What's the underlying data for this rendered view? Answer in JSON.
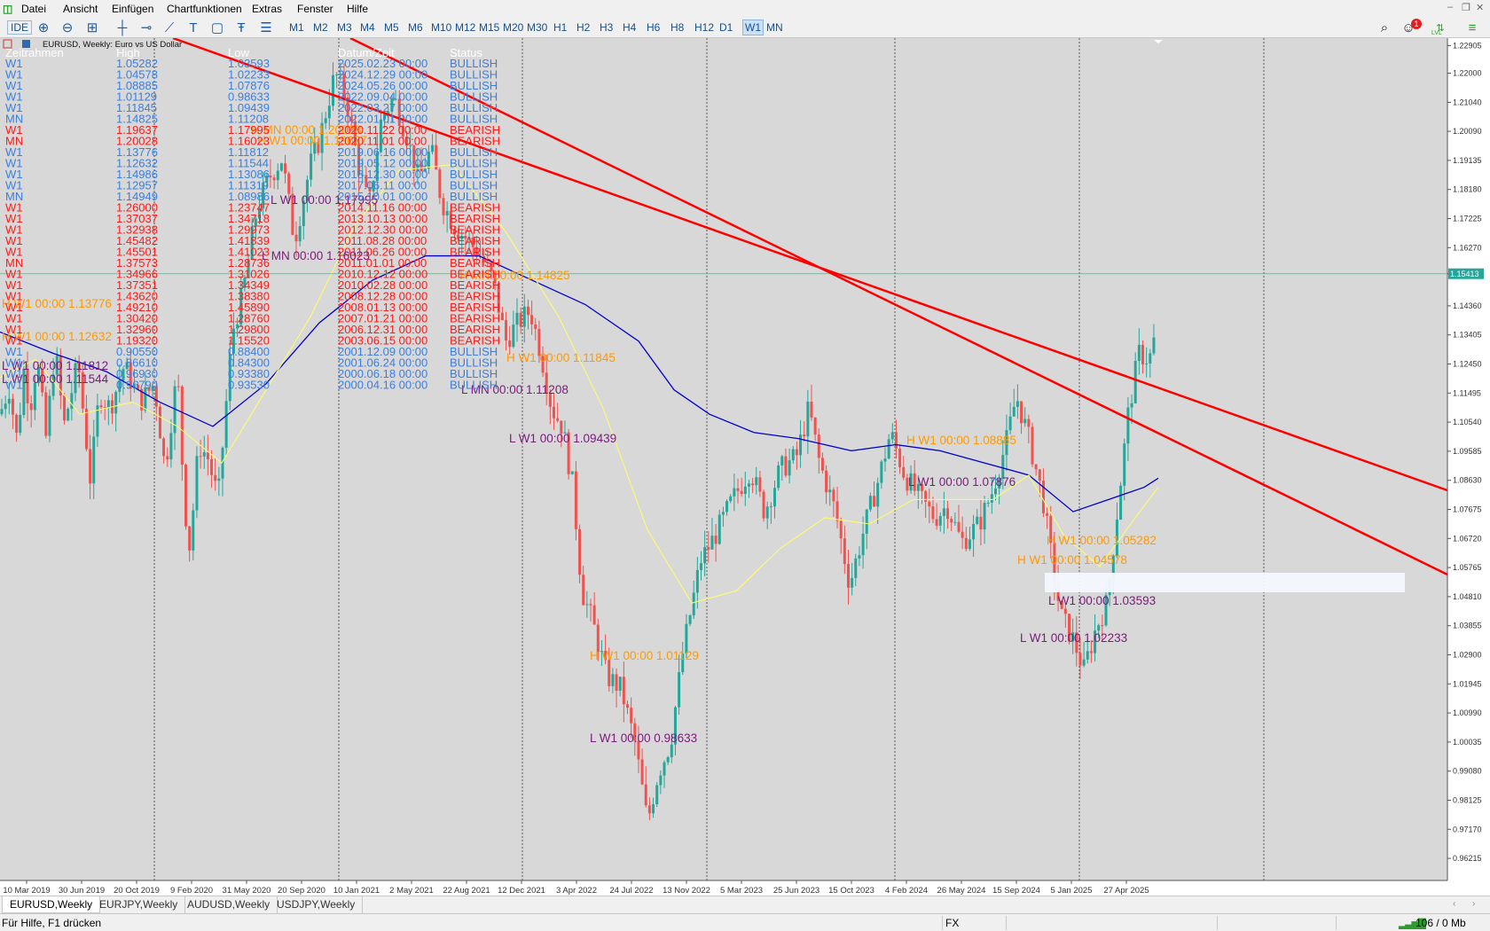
{
  "menu": [
    "Datei",
    "Ansicht",
    "Einfügen",
    "Chartfunktionen",
    "Extras",
    "Fenster",
    "Hilfe"
  ],
  "toolbar": {
    "ide_label": "IDE",
    "timeframes": [
      "M1",
      "M2",
      "M3",
      "M4",
      "M5",
      "M6",
      "M10",
      "M12",
      "M15",
      "M20",
      "M30",
      "H1",
      "H2",
      "H3",
      "H4",
      "H6",
      "H8",
      "H12",
      "D1",
      "W1",
      "MN"
    ],
    "active_timeframe": "W1",
    "notification_count": "1",
    "lvl_label": "LVL"
  },
  "chart": {
    "header": "EURUSD, Weekly:  Euro vs US Dollar",
    "current_price": "1.15413",
    "price_min": 0.9549,
    "price_max": 1.2315,
    "price_axis": [
      "1.22905",
      "1.22000",
      "1.21040",
      "1.20090",
      "1.19135",
      "1.18180",
      "1.17225",
      "1.16270",
      "1.15413",
      "1.14360",
      "1.13405",
      "1.12450",
      "1.11495",
      "1.10540",
      "1.09585",
      "1.08630",
      "1.07675",
      "1.06720",
      "1.05765",
      "1.04810",
      "1.03855",
      "1.02900",
      "1.01945",
      "1.00990",
      "1.00035",
      "0.99080",
      "0.98125",
      "0.97170",
      "0.96215"
    ],
    "date_axis": [
      "10 Mar 2019",
      "30 Jun 2019",
      "20 Oct 2019",
      "9 Feb 2020",
      "31 May 2020",
      "20 Sep 2020",
      "10 Jan 2021",
      "2 May 2021",
      "22 Aug 2021",
      "12 Dec 2021",
      "3 Apr 2022",
      "24 Jul 2022",
      "13 Nov 2022",
      "5 Mar 2023",
      "25 Jun 2023",
      "15 Oct 2023",
      "4 Feb 2024",
      "26 May 2024",
      "15 Sep 2024",
      "5 Jan 2025",
      "27 Apr 2025"
    ],
    "table_headers": [
      "Zeitrahmen",
      "High",
      "Low",
      "Datum/Zeit",
      "Status"
    ],
    "table_rows": [
      [
        "W1",
        "1.05282",
        "1.03593",
        "2025.02.23 00:00",
        "BULLISH"
      ],
      [
        "W1",
        "1.04578",
        "1.02233",
        "2024.12.29 00:00",
        "BULLISH"
      ],
      [
        "W1",
        "1.08885",
        "1.07876",
        "2024.05.26 00:00",
        "BULLISH"
      ],
      [
        "W1",
        "1.01129",
        "0.98633",
        "2022.09.04 00:00",
        "BULLISH"
      ],
      [
        "W1",
        "1.11845",
        "1.09439",
        "2022.03.27 00:00",
        "BULLISH"
      ],
      [
        "MN",
        "1.14825",
        "1.11208",
        "2022.01.01 00:00",
        "BULLISH"
      ],
      [
        "W1",
        "1.19637",
        "1.17995",
        "2020.11.22 00:00",
        "BEARISH"
      ],
      [
        "MN",
        "1.20028",
        "1.16023",
        "2020.11.01 00:00",
        "BEARISH"
      ],
      [
        "W1",
        "1.13776",
        "1.11812",
        "2019.06.16 00:00",
        "BULLISH"
      ],
      [
        "W1",
        "1.12632",
        "1.11544",
        "2019.05.12 00:00",
        "BULLISH"
      ],
      [
        "W1",
        "1.14986",
        "1.13086",
        "2018.12.30 00:00",
        "BULLISH"
      ],
      [
        "W1",
        "1.12957",
        "1.11319",
        "2017.06.11 00:00",
        "BULLISH"
      ],
      [
        "MN",
        "1.14949",
        "1.08986",
        "2015.10.01 00:00",
        "BULLISH"
      ],
      [
        "W1",
        "1.26000",
        "1.23747",
        "2014.11.16 00:00",
        "BEARISH"
      ],
      [
        "W1",
        "1.37037",
        "1.34718",
        "2013.10.13 00:00",
        "BEARISH"
      ],
      [
        "W1",
        "1.32938",
        "1.29973",
        "2012.12.30 00:00",
        "BEARISH"
      ],
      [
        "W1",
        "1.45482",
        "1.41839",
        "2011.08.28 00:00",
        "BEARISH"
      ],
      [
        "W1",
        "1.45501",
        "1.41023",
        "2011.06.26 00:00",
        "BEARISH"
      ],
      [
        "MN",
        "1.37573",
        "1.28736",
        "2011.01.01 00:00",
        "BEARISH"
      ],
      [
        "W1",
        "1.34966",
        "1.31026",
        "2010.12.12 00:00",
        "BEARISH"
      ],
      [
        "W1",
        "1.37351",
        "1.34349",
        "2010.02.28 00:00",
        "BEARISH"
      ],
      [
        "W1",
        "1.43620",
        "1.38380",
        "2008.12.28 00:00",
        "BEARISH"
      ],
      [
        "W1",
        "1.49210",
        "1.45890",
        "2008.01.13 00:00",
        "BEARISH"
      ],
      [
        "W1",
        "1.30420",
        "1.28760",
        "2007.01.21 00:00",
        "BEARISH"
      ],
      [
        "W1",
        "1.32960",
        "1.29800",
        "2006.12.31 00:00",
        "BEARISH"
      ],
      [
        "W1",
        "1.19320",
        "1.15520",
        "2003.06.15 00:00",
        "BEARISH"
      ],
      [
        "W1",
        "0.90550",
        "0.88400",
        "2001.12.09 00:00",
        "BULLISH"
      ],
      [
        "W1",
        "0.86610",
        "0.84300",
        "2001.06.24 00:00",
        "BULLISH"
      ],
      [
        "W1",
        "0.96930",
        "0.93380",
        "2000.06.18 00:00",
        "BULLISH"
      ],
      [
        "W1",
        "0.96790",
        "0.93530",
        "2000.04.16 00:00",
        "BULLISH"
      ]
    ],
    "labels": [
      {
        "text": "H MN 00:00 1.20028",
        "kind": "H"
      },
      {
        "text": "H W1 00:00 1.19637",
        "kind": "H"
      },
      {
        "text": "L W1 00:00 1.17995",
        "kind": "L"
      },
      {
        "text": "L MN 00:00 1.16023",
        "kind": "L"
      },
      {
        "text": "H MN 00:00 1.14825",
        "kind": "H"
      },
      {
        "text": "H W1 00:00 1.13776",
        "kind": "H"
      },
      {
        "text": "H W1 00:00 1.12632",
        "kind": "H"
      },
      {
        "text": "L W1 00:00 1.11812",
        "kind": "L"
      },
      {
        "text": "L W1 00:00 1.11544",
        "kind": "L"
      },
      {
        "text": "H W1 00:00 1.11845",
        "kind": "H"
      },
      {
        "text": "L MN 00:00 1.11208",
        "kind": "L"
      },
      {
        "text": "L W1 00:00 1.09439",
        "kind": "L"
      },
      {
        "text": "H W1 00:00 1.01129",
        "kind": "H"
      },
      {
        "text": "L W1 00:00 0.98633",
        "kind": "L"
      },
      {
        "text": "H W1 00:00 1.08885",
        "kind": "H"
      },
      {
        "text": "L W1 00:00 1.07876",
        "kind": "L"
      },
      {
        "text": "H W1 00:00 1.05282",
        "kind": "H"
      },
      {
        "text": "H W1 00:00 1.04578",
        "kind": "H"
      },
      {
        "text": "L W1 00:00 1.03593",
        "kind": "L"
      },
      {
        "text": "L W1 00:00 1.02233",
        "kind": "L"
      }
    ],
    "colors": {
      "bg": "#d8d8d8",
      "bull": "#26a69a",
      "bear": "#ef5350",
      "trend": "#ff0000",
      "ma_blue": "#0000c8",
      "ma_yellow": "#ffff66",
      "h_label": "#ff9900",
      "l_label": "#7a1a7a",
      "table_bull": "#3a7fe0",
      "table_bear": "#ff1a1a"
    }
  },
  "tabs": [
    "EURUSD,Weekly",
    "EURJPY,Weekly",
    "AUDUSD,Weekly",
    "USDJPY,Weekly"
  ],
  "active_tab": 0,
  "status": {
    "help": "Für Hilfe, F1 drücken",
    "market": "FX",
    "connection": "106 / 0 Mb"
  }
}
